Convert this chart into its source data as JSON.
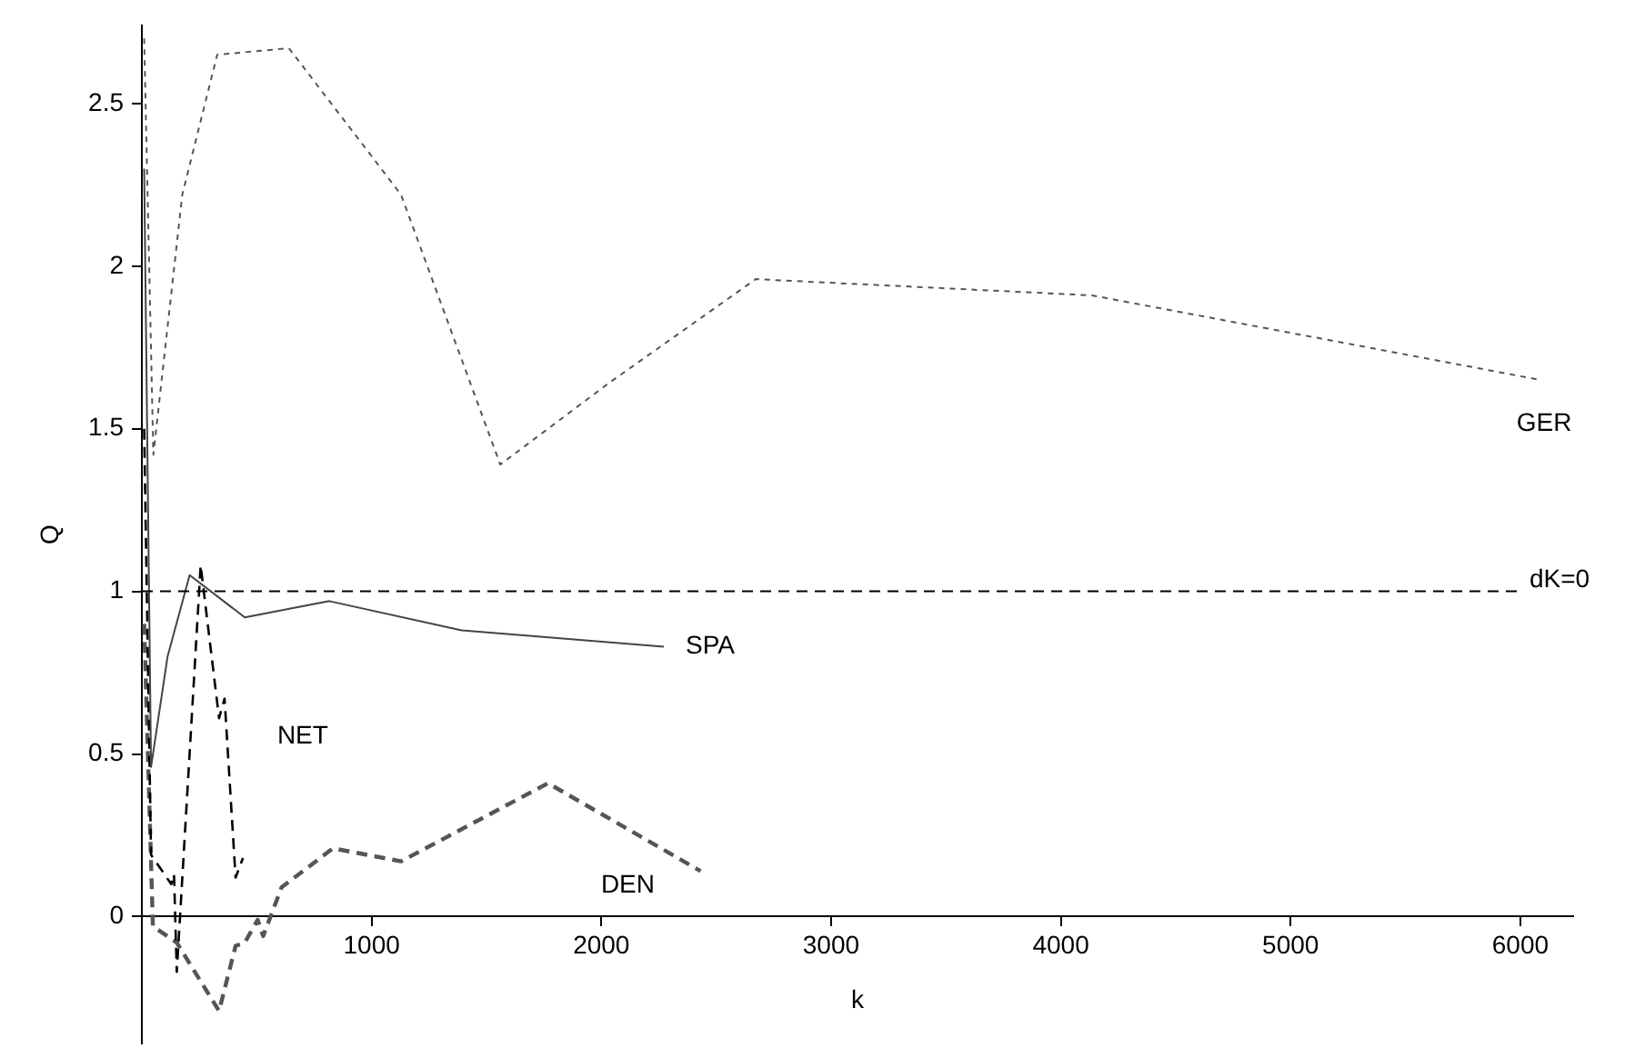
{
  "chart_data": {
    "type": "line",
    "xlabel": "k",
    "ylabel": "Q",
    "xlim": [
      0,
      6230
    ],
    "ylim": [
      -0.39,
      2.74
    ],
    "xticks": [
      1000,
      2000,
      3000,
      4000,
      5000,
      6000
    ],
    "yticks": [
      0,
      {
        "value": 0.5,
        "label": "0.5"
      },
      1,
      1.5,
      2,
      2.5
    ],
    "grid": false,
    "legend": false,
    "marker": "none",
    "series": [
      {
        "name": "GER",
        "color": "#555555",
        "line_style": "dotted",
        "x": [
          10,
          50,
          176,
          328,
          640,
          1128,
          1560,
          2032,
          2672,
          4136,
          6088
        ],
        "values": [
          2.7,
          1.42,
          2.22,
          2.65,
          2.67,
          2.22,
          1.39,
          1.64,
          1.96,
          1.91,
          1.65
        ]
      },
      {
        "name": "SPA",
        "color": "#444444",
        "line_style": "solid",
        "x": [
          10,
          40,
          112,
          208,
          448,
          816,
          1392,
          2272
        ],
        "values": [
          2.3,
          0.46,
          0.8,
          1.05,
          0.92,
          0.97,
          0.88,
          0.83
        ]
      },
      {
        "name": "NET",
        "color": "#000000",
        "line_style": "dashed",
        "x": [
          10,
          40,
          128,
          140,
          152,
          256,
          336,
          360,
          408,
          440
        ],
        "values": [
          1.5,
          0.19,
          0.1,
          0.13,
          -0.17,
          1.08,
          0.61,
          0.67,
          0.12,
          0.18
        ]
      },
      {
        "name": "DEN",
        "color": "#555555",
        "line_style": "dashed",
        "x": [
          10,
          48,
          152,
          336,
          408,
          448,
          504,
          528,
          608,
          832,
          1128,
          1768,
          2432
        ],
        "values": [
          0.9,
          -0.03,
          -0.08,
          -0.29,
          -0.09,
          -0.08,
          -0.01,
          -0.06,
          0.09,
          0.21,
          0.17,
          0.41,
          0.14
        ]
      }
    ],
    "ref_lines": [
      {
        "axis": "y",
        "value": 1,
        "color": "#000000",
        "line_style": "dashed"
      }
    ],
    "annotations": [
      "dK=0"
    ]
  }
}
